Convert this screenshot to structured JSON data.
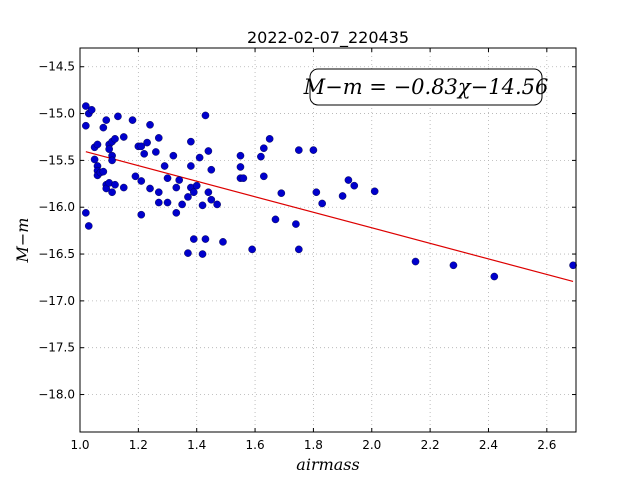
{
  "chart_data": {
    "type": "scatter",
    "title": "2022-02-07_220435",
    "xlabel": "airmass",
    "ylabel": "M−m",
    "xlim": [
      1.0,
      2.7
    ],
    "ylim": [
      -18.4,
      -14.3
    ],
    "y_inverted": true,
    "grid": true,
    "xticks": [
      "1.0",
      "1.2",
      "1.4",
      "1.6",
      "1.8",
      "2.0",
      "2.2",
      "2.4",
      "2.6"
    ],
    "yticks": [
      "−14.5",
      "−15.0",
      "−15.5",
      "−16.0",
      "−16.5",
      "−17.0",
      "−17.5",
      "−18.0"
    ],
    "annotation": "M−m = −0.83χ−14.56",
    "fit_line": {
      "slope": -0.83,
      "intercept": -14.56,
      "x_range": [
        1.02,
        2.69
      ],
      "color": "#dd0000"
    },
    "marker_color": "#0000cc",
    "series": [
      {
        "points": [
          [
            1.02,
            -14.92
          ],
          [
            1.02,
            -15.13
          ],
          [
            1.02,
            -16.06
          ],
          [
            1.03,
            -16.2
          ],
          [
            1.03,
            -15.0
          ],
          [
            1.04,
            -14.96
          ],
          [
            1.05,
            -15.36
          ],
          [
            1.05,
            -15.49
          ],
          [
            1.06,
            -15.33
          ],
          [
            1.06,
            -15.56
          ],
          [
            1.06,
            -15.61
          ],
          [
            1.06,
            -15.66
          ],
          [
            1.07,
            -15.63
          ],
          [
            1.08,
            -15.62
          ],
          [
            1.08,
            -15.15
          ],
          [
            1.09,
            -15.07
          ],
          [
            1.09,
            -15.76
          ],
          [
            1.09,
            -15.8
          ],
          [
            1.1,
            -15.33
          ],
          [
            1.1,
            -15.38
          ],
          [
            1.1,
            -15.74
          ],
          [
            1.11,
            -15.3
          ],
          [
            1.11,
            -15.45
          ],
          [
            1.11,
            -15.5
          ],
          [
            1.11,
            -15.84
          ],
          [
            1.12,
            -15.27
          ],
          [
            1.12,
            -15.76
          ],
          [
            1.13,
            -15.03
          ],
          [
            1.15,
            -15.25
          ],
          [
            1.15,
            -15.79
          ],
          [
            1.18,
            -15.07
          ],
          [
            1.19,
            -15.67
          ],
          [
            1.2,
            -15.35
          ],
          [
            1.21,
            -15.35
          ],
          [
            1.21,
            -15.72
          ],
          [
            1.21,
            -16.08
          ],
          [
            1.22,
            -15.43
          ],
          [
            1.23,
            -15.31
          ],
          [
            1.24,
            -15.12
          ],
          [
            1.24,
            -15.8
          ],
          [
            1.26,
            -15.41
          ],
          [
            1.27,
            -15.26
          ],
          [
            1.27,
            -15.84
          ],
          [
            1.27,
            -15.95
          ],
          [
            1.29,
            -15.56
          ],
          [
            1.3,
            -15.69
          ],
          [
            1.3,
            -15.95
          ],
          [
            1.32,
            -15.45
          ],
          [
            1.33,
            -15.79
          ],
          [
            1.33,
            -16.06
          ],
          [
            1.34,
            -15.71
          ],
          [
            1.35,
            -15.97
          ],
          [
            1.37,
            -15.89
          ],
          [
            1.37,
            -16.49
          ],
          [
            1.38,
            -15.3
          ],
          [
            1.38,
            -15.56
          ],
          [
            1.38,
            -15.79
          ],
          [
            1.39,
            -15.84
          ],
          [
            1.39,
            -16.34
          ],
          [
            1.4,
            -15.77
          ],
          [
            1.41,
            -15.47
          ],
          [
            1.42,
            -15.98
          ],
          [
            1.42,
            -16.5
          ],
          [
            1.43,
            -15.02
          ],
          [
            1.43,
            -16.34
          ],
          [
            1.44,
            -15.4
          ],
          [
            1.44,
            -15.84
          ],
          [
            1.45,
            -15.6
          ],
          [
            1.45,
            -15.92
          ],
          [
            1.47,
            -15.97
          ],
          [
            1.49,
            -16.37
          ],
          [
            1.55,
            -15.45
          ],
          [
            1.55,
            -15.57
          ],
          [
            1.55,
            -15.69
          ],
          [
            1.56,
            -15.69
          ],
          [
            1.59,
            -16.45
          ],
          [
            1.62,
            -15.46
          ],
          [
            1.63,
            -15.37
          ],
          [
            1.63,
            -15.67
          ],
          [
            1.65,
            -15.27
          ],
          [
            1.67,
            -16.13
          ],
          [
            1.69,
            -15.85
          ],
          [
            1.74,
            -16.18
          ],
          [
            1.75,
            -15.39
          ],
          [
            1.75,
            -16.45
          ],
          [
            1.8,
            -15.39
          ],
          [
            1.81,
            -15.84
          ],
          [
            1.83,
            -15.96
          ],
          [
            1.9,
            -15.88
          ],
          [
            1.92,
            -15.71
          ],
          [
            1.94,
            -15.77
          ],
          [
            2.01,
            -15.83
          ],
          [
            2.15,
            -16.58
          ],
          [
            2.28,
            -16.62
          ],
          [
            2.42,
            -16.74
          ],
          [
            2.69,
            -16.62
          ]
        ]
      }
    ]
  }
}
